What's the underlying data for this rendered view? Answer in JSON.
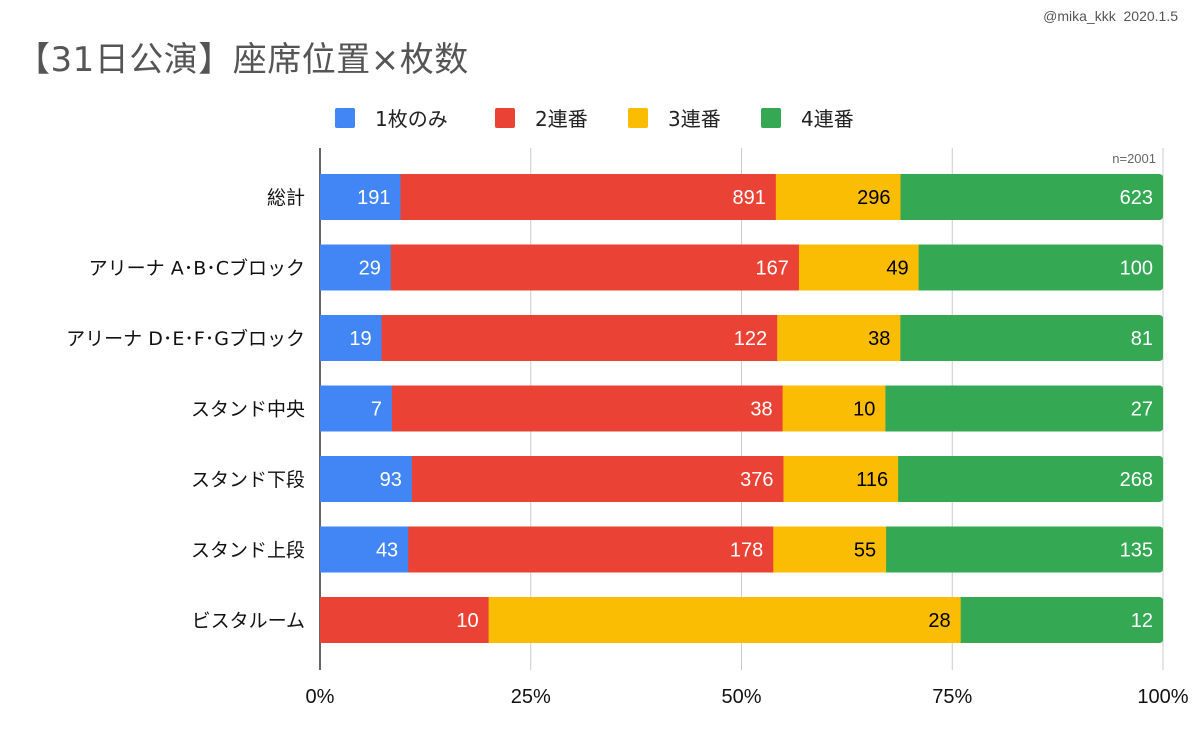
{
  "credit": "@mika_kkk  2020.1.5",
  "chart_data": {
    "type": "bar",
    "orientation": "horizontal",
    "stacked": "percent",
    "title": "【31日公演】座席位置×枚数",
    "note": "n=2001",
    "categories": [
      "総計",
      "アリーナ A･B･Cブロック",
      "アリーナ D･E･F･Gブロック",
      "スタンド中央",
      "スタンド下段",
      "スタンド上段",
      "ビスタルーム"
    ],
    "series": [
      {
        "name": "1枚のみ",
        "color": "#4285f4",
        "label_color": "#ffffff",
        "values": [
          191,
          29,
          19,
          7,
          93,
          43,
          0
        ]
      },
      {
        "name": "2連番",
        "color": "#ea4335",
        "label_color": "#ffffff",
        "values": [
          891,
          167,
          122,
          38,
          376,
          178,
          10
        ]
      },
      {
        "name": "3連番",
        "color": "#fbbc04",
        "label_color": "#000000",
        "values": [
          296,
          49,
          38,
          10,
          116,
          55,
          28
        ]
      },
      {
        "name": "4連番",
        "color": "#34a853",
        "label_color": "#ffffff",
        "values": [
          623,
          100,
          81,
          27,
          268,
          135,
          12
        ]
      }
    ],
    "xticks": [
      "0%",
      "25%",
      "50%",
      "75%",
      "100%"
    ],
    "xlim": [
      0,
      100
    ],
    "grid": true,
    "legend_position": "top"
  }
}
